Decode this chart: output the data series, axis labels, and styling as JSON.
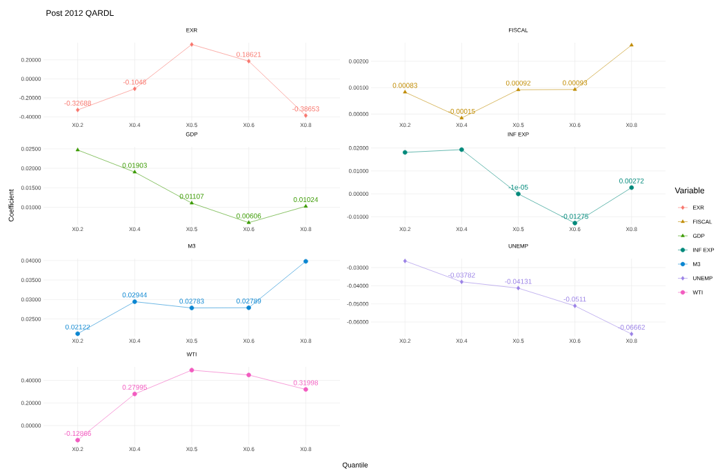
{
  "chart_data": [
    {
      "type": "line",
      "title": "EXR",
      "annotations": [
        "Post 2012 QARDL"
      ],
      "legend_title": "Variable",
      "legend": "right",
      "grid": true,
      "marker": "diamond",
      "categories": [
        "X0.2",
        "X0.4",
        "X0.5",
        "X0.6",
        "X0.8"
      ],
      "series": [
        {
          "name": "EXR",
          "color": "#f8766d",
          "values": [
            -0.32688,
            -0.1048,
            0.362,
            0.18621,
            -0.38653
          ],
          "value_labels": [
            "-0.32688",
            "-0.1048",
            null,
            "0.18621",
            "-0.38653"
          ]
        }
      ],
      "ylim": [
        -0.44,
        0.38
      ],
      "yticks": [
        {
          "value": -0.4,
          "label": "-0.40000"
        },
        {
          "value": -0.2,
          "label": "-0.20000"
        },
        {
          "value": 0,
          "label": "0.00000"
        },
        {
          "value": 0.2,
          "label": "0.20000"
        }
      ]
    },
    {
      "type": "line",
      "title": "FISCAL",
      "legend": "right",
      "grid": true,
      "marker": "triangle",
      "categories": [
        "X0.2",
        "X0.4",
        "X0.5",
        "X0.6",
        "X0.8"
      ],
      "series": [
        {
          "name": "FISCAL",
          "color": "#c08b00",
          "values": [
            0.00083,
            -0.00015,
            0.00092,
            0.00093,
            0.00261
          ],
          "value_labels": [
            "0.00083",
            "-0.00015",
            "0.00092",
            "0.00093",
            null
          ]
        }
      ],
      "ylim": [
        -0.00025,
        0.0027
      ],
      "yticks": [
        {
          "value": 0,
          "label": "0.00000"
        },
        {
          "value": 0.001,
          "label": "0.00100"
        },
        {
          "value": 0.002,
          "label": "0.00200"
        }
      ]
    },
    {
      "type": "line",
      "title": "GDP",
      "ylabel": "Coefficient",
      "legend": "right",
      "grid": true,
      "marker": "triangle",
      "categories": [
        "X0.2",
        "X0.4",
        "X0.5",
        "X0.6",
        "X0.8"
      ],
      "series": [
        {
          "name": "GDP",
          "color": "#3a9a00",
          "values": [
            0.0247,
            0.01903,
            0.01107,
            0.00606,
            0.01024
          ],
          "value_labels": [
            null,
            "0.01903",
            "0.01107",
            "0.00606",
            "0.01024"
          ]
        }
      ],
      "ylim": [
        0.0055,
        0.0255
      ],
      "yticks": [
        {
          "value": 0.01,
          "label": "0.01000"
        },
        {
          "value": 0.015,
          "label": "0.01500"
        },
        {
          "value": 0.02,
          "label": "0.02000"
        },
        {
          "value": 0.025,
          "label": "0.02500"
        }
      ]
    },
    {
      "type": "line",
      "title": "INF EXP",
      "legend": "right",
      "grid": true,
      "marker": "circle",
      "categories": [
        "X0.2",
        "X0.4",
        "X0.5",
        "X0.6",
        "X0.8"
      ],
      "series": [
        {
          "name": "INF EXP",
          "color": "#00897b",
          "values": [
            0.0181,
            0.0193,
            -1e-05,
            -0.01275,
            0.00272
          ],
          "value_labels": [
            null,
            null,
            "-1e-05",
            "-0.01275",
            "0.00272"
          ]
        }
      ],
      "ylim": [
        -0.0135,
        0.0205
      ],
      "yticks": [
        {
          "value": -0.01,
          "label": "-0.01000"
        },
        {
          "value": 0,
          "label": "0.00000"
        },
        {
          "value": 0.01,
          "label": "0.01000"
        },
        {
          "value": 0.02,
          "label": "0.02000"
        }
      ]
    },
    {
      "type": "line",
      "title": "M3",
      "legend": "right",
      "grid": true,
      "marker": "circle",
      "categories": [
        "X0.2",
        "X0.4",
        "X0.5",
        "X0.6",
        "X0.8"
      ],
      "series": [
        {
          "name": "M3",
          "color": "#0b86d1",
          "values": [
            0.02122,
            0.02944,
            0.02783,
            0.02789,
            0.0398
          ],
          "value_labels": [
            "0.02122",
            "0.02944",
            "0.02783",
            "0.02789",
            null
          ]
        }
      ],
      "ylim": [
        0.0205,
        0.0405
      ],
      "yticks": [
        {
          "value": 0.025,
          "label": "0.02500"
        },
        {
          "value": 0.03,
          "label": "0.03000"
        },
        {
          "value": 0.035,
          "label": "0.03500"
        },
        {
          "value": 0.04,
          "label": "0.04000"
        }
      ]
    },
    {
      "type": "line",
      "title": "UNEMP",
      "legend": "right",
      "grid": true,
      "marker": "diamond",
      "categories": [
        "X0.2",
        "X0.4",
        "X0.5",
        "X0.6",
        "X0.8"
      ],
      "series": [
        {
          "name": "UNEMP",
          "color": "#9b82e6",
          "values": [
            -0.0263,
            -0.03782,
            -0.04131,
            -0.0511,
            -0.06662
          ],
          "value_labels": [
            null,
            "-0.03782",
            "-0.04131",
            "-0.0511",
            "-0.06662"
          ]
        }
      ],
      "ylim": [
        -0.068,
        -0.025
      ],
      "yticks": [
        {
          "value": -0.06,
          "label": "-0.06000"
        },
        {
          "value": -0.05,
          "label": "-0.05000"
        },
        {
          "value": -0.04,
          "label": "-0.04000"
        },
        {
          "value": -0.03,
          "label": "-0.03000"
        }
      ]
    },
    {
      "type": "line",
      "title": "WTI",
      "xlabel": "Quantile",
      "legend": "right",
      "grid": true,
      "marker": "circle",
      "categories": [
        "X0.2",
        "X0.4",
        "X0.5",
        "X0.6",
        "X0.8"
      ],
      "series": [
        {
          "name": "WTI",
          "color": "#f25cc0",
          "values": [
            -0.12866,
            0.27995,
            0.491,
            0.448,
            0.31998
          ],
          "value_labels": [
            "-0.12866",
            "0.27995",
            null,
            null,
            "0.31998"
          ]
        }
      ],
      "ylim": [
        -0.17,
        0.52
      ],
      "yticks": [
        {
          "value": 0,
          "label": "0.00000"
        },
        {
          "value": 0.2,
          "label": "0.20000"
        },
        {
          "value": 0.4,
          "label": "0.40000"
        }
      ]
    }
  ]
}
